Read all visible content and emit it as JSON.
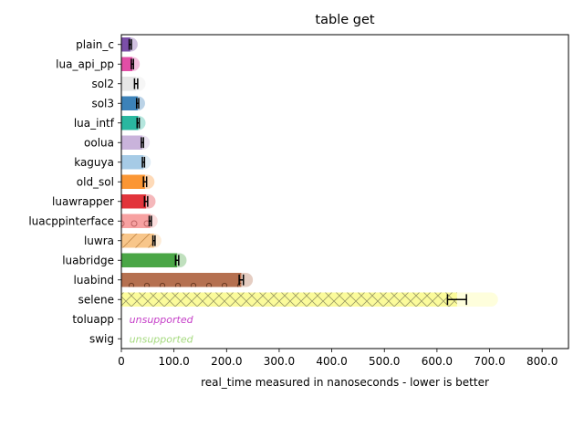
{
  "chart_data": {
    "type": "bar",
    "orientation": "horizontal",
    "title": "table get",
    "xlabel": "real_time measured in nanoseconds - lower is better",
    "ylabel": "",
    "xlim": [
      0,
      850
    ],
    "xticks": [
      "0",
      "100.0",
      "200.0",
      "300.0",
      "400.0",
      "500.0",
      "600.0",
      "700.0",
      "800.0"
    ],
    "xtick_values": [
      0,
      100,
      200,
      300,
      400,
      500,
      600,
      700,
      800
    ],
    "grid": false,
    "legend": "none",
    "unsupported_label": "unsupported",
    "bars": [
      {
        "name": "plain_c",
        "value": 17,
        "err": 2,
        "color": "#7b4fa8",
        "supported": true
      },
      {
        "name": "lua_api_pp",
        "value": 21,
        "err": 2,
        "color": "#e14ea6",
        "supported": true
      },
      {
        "name": "sol2",
        "value": 28,
        "err": 3,
        "color": "#e6e6e6",
        "supported": true
      },
      {
        "name": "sol3",
        "value": 31,
        "err": 2,
        "color": "#3c82b9",
        "supported": true
      },
      {
        "name": "lua_intf",
        "value": 32,
        "err": 2,
        "color": "#2ab7a0",
        "supported": true
      },
      {
        "name": "oolua",
        "value": 40,
        "err": 2,
        "color": "#c9b3db",
        "supported": true
      },
      {
        "name": "kaguya",
        "value": 42,
        "err": 2,
        "color": "#a6cbe6",
        "supported": true
      },
      {
        "name": "old_sol",
        "value": 45,
        "err": 3,
        "color": "#fb9634",
        "supported": true
      },
      {
        "name": "luawrapper",
        "value": 47,
        "err": 3,
        "color": "#e2343b",
        "supported": true
      },
      {
        "name": "luacppinterface",
        "value": 55,
        "err": 2,
        "color": "#f7a1a1",
        "supported": true
      },
      {
        "name": "luwra",
        "value": 62,
        "err": 2,
        "color": "#f8c68a",
        "supported": true
      },
      {
        "name": "luabridge",
        "value": 106,
        "err": 3,
        "color": "#4aa646",
        "supported": true
      },
      {
        "name": "luabind",
        "value": 228,
        "err": 4,
        "color": "#b57050",
        "supported": true
      },
      {
        "name": "selene",
        "value": 638,
        "err": 18,
        "color": "#fbfb9b",
        "supported": true
      },
      {
        "name": "toluapp",
        "value": 0,
        "err": 0,
        "color": "#c53ec8",
        "supported": false
      },
      {
        "name": "swig",
        "value": 0,
        "err": 0,
        "color": "#a5da7f",
        "supported": false
      }
    ]
  }
}
